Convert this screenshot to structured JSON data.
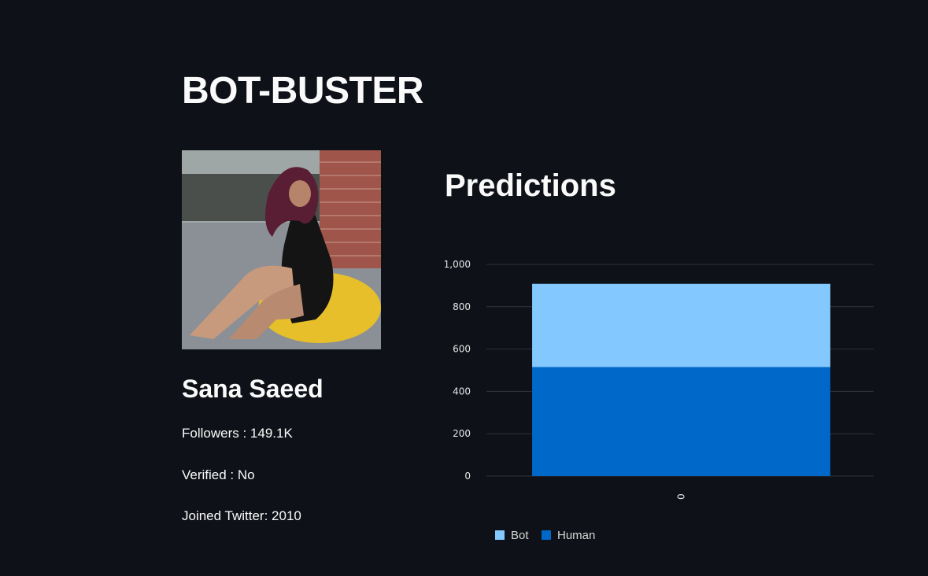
{
  "app": {
    "title": "BOT-BUSTER"
  },
  "profile": {
    "name": "Sana Saeed",
    "followers_label": "Followers : ",
    "followers_value": "149.1K",
    "verified_label": "Verified : ",
    "verified_value": "No",
    "joined_label": "Joined Twitter: ",
    "joined_value": "2010"
  },
  "predictions": {
    "heading": "Predictions"
  },
  "chart_data": {
    "type": "bar",
    "stacked": true,
    "categories": [
      "0"
    ],
    "series": [
      {
        "name": "Human",
        "values": [
          515
        ],
        "color": "#0068c9"
      },
      {
        "name": "Bot",
        "values": [
          393
        ],
        "color": "#83c9ff"
      }
    ],
    "ylim": [
      0,
      1000
    ],
    "yticks": [
      0,
      200,
      400,
      600,
      800,
      1000
    ],
    "ytick_labels": [
      "0",
      "200",
      "400",
      "600",
      "800",
      "1,000"
    ],
    "grid": true,
    "legend_position": "bottom-left",
    "legend_order": [
      "Bot",
      "Human"
    ]
  }
}
